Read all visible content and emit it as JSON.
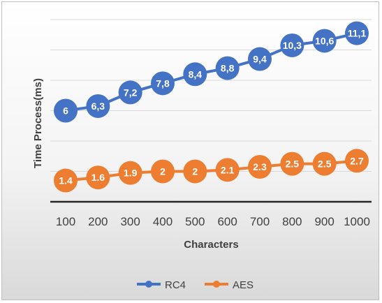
{
  "chart_data": {
    "type": "line",
    "title": "",
    "xlabel": "Characters",
    "ylabel": "Time Process(ms)",
    "categories": [
      "100",
      "200",
      "300",
      "400",
      "500",
      "600",
      "700",
      "800",
      "900",
      "1000"
    ],
    "ylim": [
      0,
      12
    ],
    "grid": true,
    "legend_position": "bottom",
    "series": [
      {
        "name": "RC4",
        "color": "#4472c4",
        "values": [
          6,
          6.3,
          7.2,
          7.8,
          8.4,
          8.8,
          9.4,
          10.3,
          10.6,
          11.1
        ],
        "labels": [
          "6",
          "6,3",
          "7,2",
          "7,8",
          "8,4",
          "8,8",
          "9,4",
          "10,3",
          "10,6",
          "11,1"
        ]
      },
      {
        "name": "AES",
        "color": "#ed7d31",
        "values": [
          1.4,
          1.6,
          1.9,
          2,
          2,
          2.1,
          2.3,
          2.5,
          2.5,
          2.7
        ],
        "labels": [
          "1.4",
          "1.6",
          "1.9",
          "2",
          "2",
          "2.1",
          "2.3",
          "2.5",
          "2.5",
          "2.7"
        ]
      }
    ]
  }
}
